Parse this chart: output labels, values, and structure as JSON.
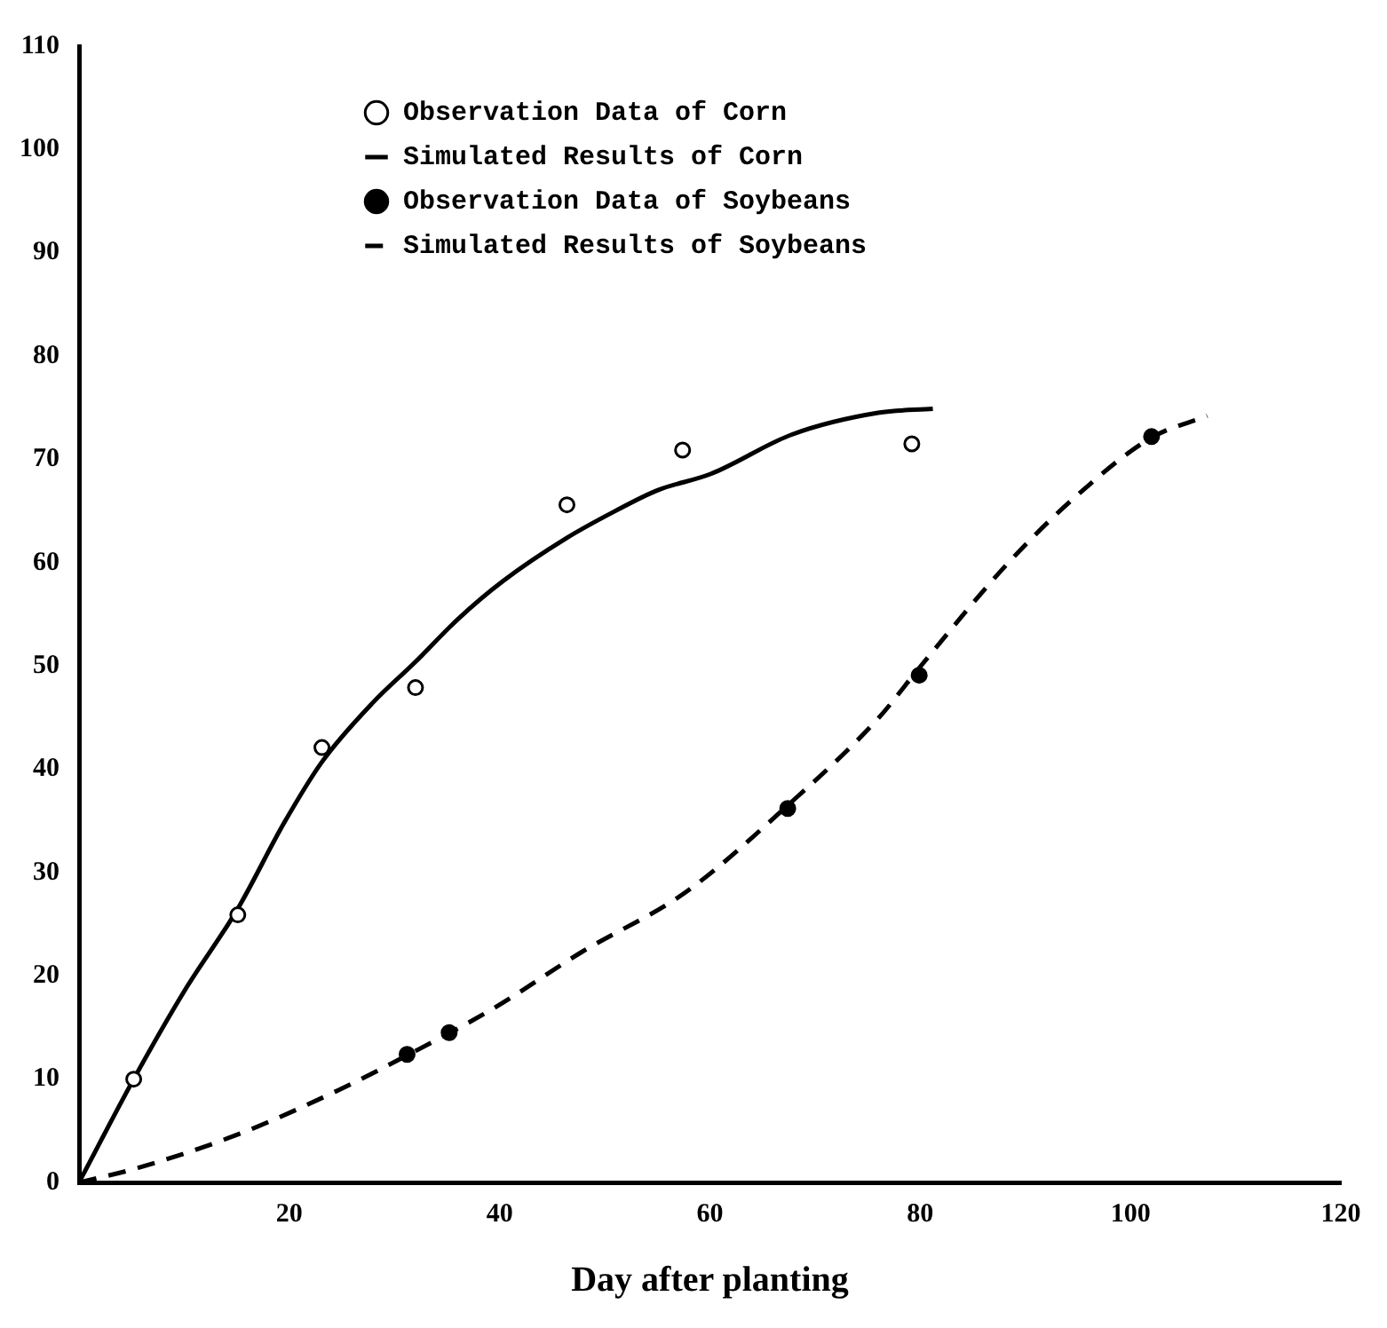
{
  "chart_data": {
    "type": "line",
    "xlabel": "Day after planting",
    "xlim": [
      0,
      120
    ],
    "xticks": [
      20,
      40,
      60,
      80,
      100,
      120
    ],
    "ylim": [
      0,
      110
    ],
    "yticks": [
      0,
      10,
      20,
      30,
      40,
      50,
      60,
      70,
      80,
      90,
      100,
      110
    ],
    "grid": false,
    "legend": "top",
    "series": [
      {
        "name": "Observation Data of Corn",
        "type": "scatter",
        "marker": "circle",
        "color": "#000000",
        "x": [
          5.2,
          15.1,
          23.1,
          32.0,
          46.4,
          57.4,
          79.2
        ],
        "values": [
          10,
          25.9,
          42.1,
          47.9,
          65.6,
          70.9,
          71.5
        ]
      },
      {
        "name": "Simulated Results of Corn",
        "type": "line",
        "line_style": "solid",
        "marker": "none",
        "color": "#000000",
        "x": [
          0,
          5.2,
          10,
          15.1,
          19.5,
          23.1,
          28,
          32,
          36,
          40.3,
          46.4,
          51,
          55,
          60.1,
          67.8,
          76,
          81.2
        ],
        "values": [
          0,
          10,
          18.5,
          26.5,
          34.8,
          40.7,
          46.5,
          50.4,
          54.5,
          58.2,
          62.4,
          65,
          67,
          68.6,
          72.4,
          74.5,
          74.9
        ]
      },
      {
        "name": "Observation Data of Soybeans",
        "type": "scatter",
        "marker": "circle",
        "color": "#000000",
        "x": [
          31.2,
          35.2,
          67.4,
          79.9,
          102
        ],
        "values": [
          12.4,
          14.5,
          36.2,
          49.1,
          72.2
        ]
      },
      {
        "name": "Simulated Results of Soybeans",
        "type": "line",
        "line_style": "dashed",
        "marker": "none",
        "color": "#000000",
        "x": [
          0,
          5.6,
          15.5,
          24.6,
          31.2,
          39.5,
          47.8,
          57.7,
          67.4,
          75.9,
          79.9,
          88.3,
          94.9,
          102,
          107.3
        ],
        "values": [
          0,
          1.4,
          4.8,
          8.9,
          12.3,
          16.9,
          22.3,
          28.1,
          36.5,
          44.8,
          49.8,
          59.9,
          66.5,
          72.1,
          74.2
        ]
      }
    ]
  }
}
